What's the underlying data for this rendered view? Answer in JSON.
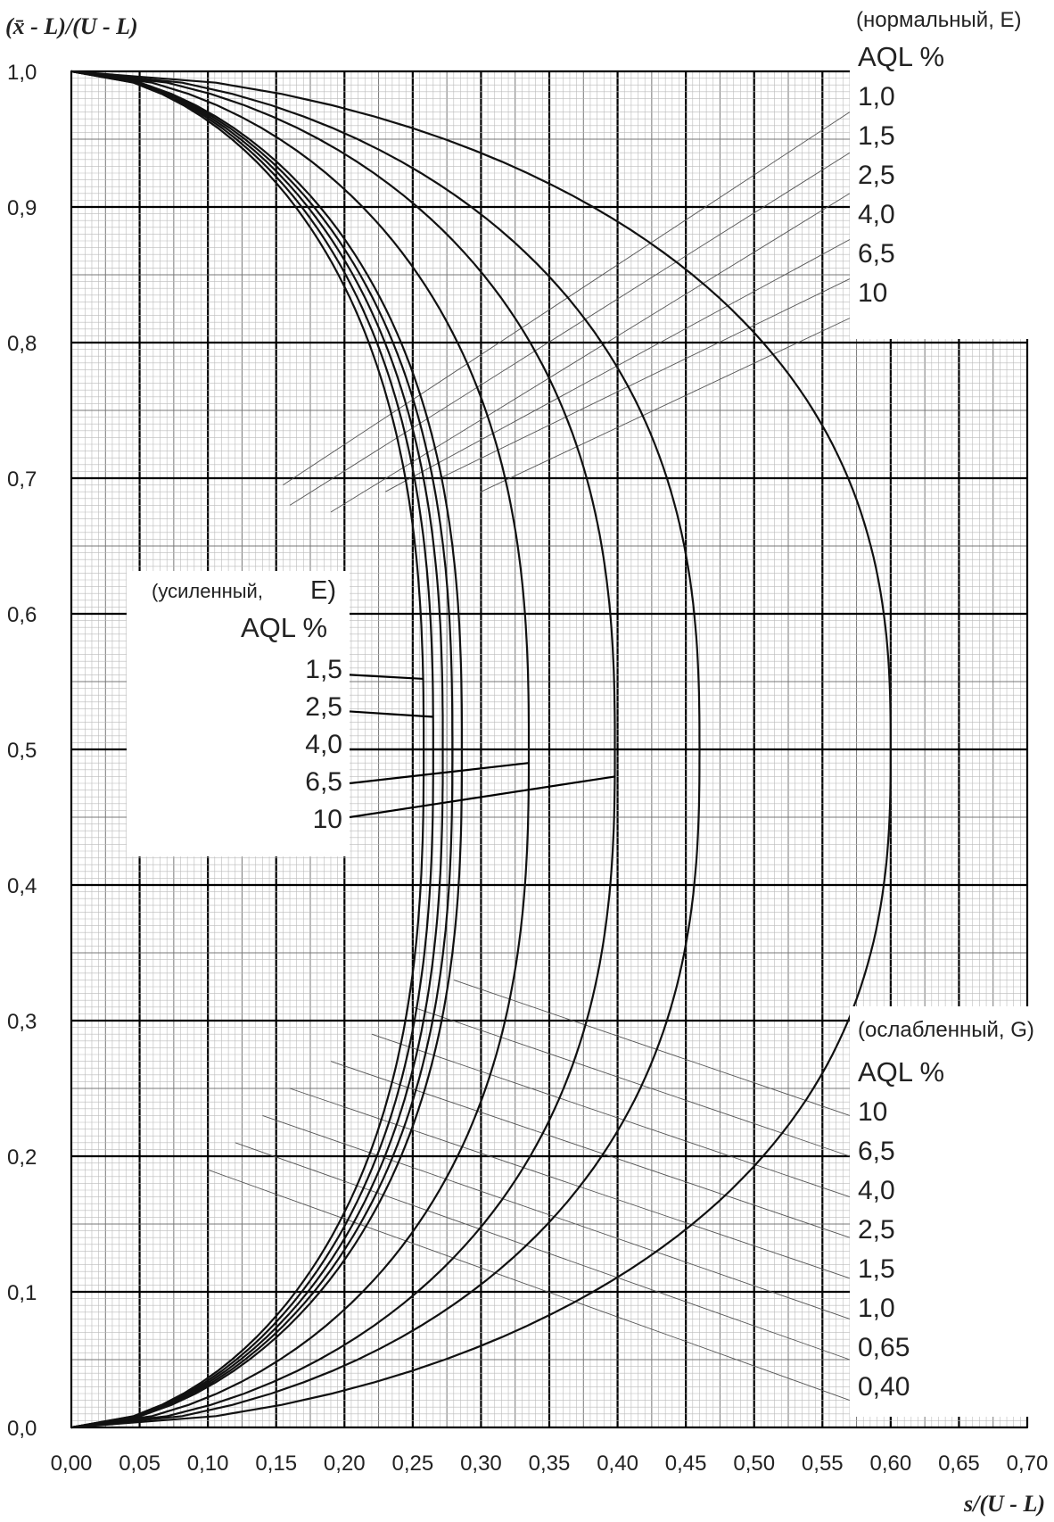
{
  "chart_data": {
    "type": "line",
    "xlabel": "s/(U - L)",
    "ylabel": "(x̄ - L)/(U - L)",
    "xlim": [
      0,
      0.7
    ],
    "ylim": [
      0,
      1.0
    ],
    "x_ticks": [
      "0,00",
      "0,05",
      "0,10",
      "0,15",
      "0,20",
      "0,25",
      "0,30",
      "0,35",
      "0,40",
      "0,45",
      "0,50",
      "0,55",
      "0,60",
      "0,65",
      "0,70"
    ],
    "y_ticks": [
      "0,0",
      "0,1",
      "0,2",
      "0,3",
      "0,4",
      "0,5",
      "0,6",
      "0,7",
      "0,8",
      "0,9",
      "1,0"
    ],
    "grid": "fine millimetre grid with major lines at every 0.05 / 0.1",
    "curves": [
      {
        "name": "усиленный 1,5 (E)",
        "max_s": 0.258
      },
      {
        "name": "усиленный 2,5 (E)",
        "max_s": 0.265
      },
      {
        "name": "усиленный 4,0 (E)",
        "max_s": 0.272
      },
      {
        "name": "усиленный 6,5 (E)",
        "max_s": 0.279
      },
      {
        "name": "усиленный 10 (E)",
        "max_s": 0.286
      },
      {
        "name": "нормальный 4,0 (E)",
        "max_s": 0.335
      },
      {
        "name": "нормальный 6,5 (E)",
        "max_s": 0.398
      },
      {
        "name": "нормальный 10 (E)",
        "max_s": 0.46
      },
      {
        "name": "ослабленный 10 (G)",
        "max_s": 0.6
      }
    ],
    "normal_legend": {
      "title": "(нормальный, E)",
      "aql": "AQL %",
      "items": [
        "1,0",
        "1,5",
        "2,5",
        "4,0",
        "6,5",
        "10"
      ]
    },
    "tightened_legend": {
      "title_left": "(усиленный,",
      "title_right": "E)",
      "aql": "AQL %",
      "items": [
        "1,5",
        "2,5",
        "4,0",
        "6,5",
        "10"
      ]
    },
    "reduced_legend": {
      "title": "(ослабленный, G)",
      "aql": "AQL %",
      "items": [
        "10",
        "6,5",
        "4,0",
        "2,5",
        "1,5",
        "1,0",
        "0,65",
        "0,40"
      ]
    }
  }
}
